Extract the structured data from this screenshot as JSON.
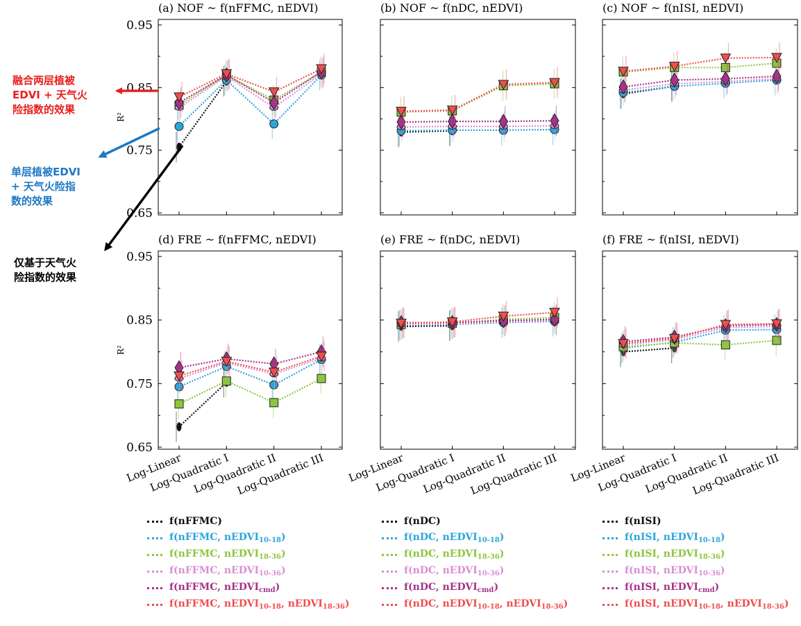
{
  "annotations": {
    "red": "融合两层植被\nEDVI + 天气火\n险指数的效果",
    "blue": "单层植被EDVI\n+ 天气火险指\n数的效果",
    "black": "仅基于天气火\n险指数的效果"
  },
  "colors": {
    "black": "#111111",
    "blue": "#2aa6d9",
    "green": "#8cc63f",
    "pink": "#d98fd6",
    "purple": "#a63289",
    "red": "#f04e4e"
  },
  "chart_data": [
    {
      "type": "line",
      "title": "(a) NOF ~ f(nFFMC, nEDVI)",
      "categories": [
        "Log-Linear",
        "Log-Quadratic I",
        "Log-Quadratic II",
        "Log-Quadratic III"
      ],
      "ylim": [
        0.65,
        0.95
      ],
      "yticks": [
        "0.95",
        "0.85",
        "0.75",
        "0.65"
      ],
      "ylabel": "R²",
      "series": [
        {
          "name": "f(nFFMC)",
          "values": [
            0.755,
            0.86,
            null,
            null
          ]
        },
        {
          "name": "f(nFFMC, nEDVI10-18)",
          "values": [
            0.788,
            0.862,
            0.792,
            0.87
          ]
        },
        {
          "name": "f(nFFMC, nEDVI18-36)",
          "values": [
            0.822,
            0.87,
            0.83,
            0.875
          ]
        },
        {
          "name": "f(nFFMC, nEDVI10-36)",
          "values": [
            0.818,
            0.868,
            0.818,
            0.872
          ]
        },
        {
          "name": "f(nFFMC, nEDVIcmd)",
          "values": [
            0.826,
            0.87,
            0.826,
            0.875
          ]
        },
        {
          "name": "f(nFFMC, nEDVI10-18, nEDVI18-36)",
          "values": [
            0.835,
            0.872,
            0.843,
            0.88
          ]
        }
      ]
    },
    {
      "type": "line",
      "title": "(b) NOF ~ f(nDC, nEDVI)",
      "categories": [
        "Log-Linear",
        "Log-Quadratic I",
        "Log-Quadratic II",
        "Log-Quadratic III"
      ],
      "ylim": [
        0.65,
        0.95
      ],
      "yticks": [],
      "series": [
        {
          "name": "f(nDC)",
          "values": [
            0.779,
            0.781,
            null,
            null
          ]
        },
        {
          "name": "f(nDC, nEDVI10-18)",
          "values": [
            0.781,
            0.782,
            0.782,
            0.783
          ]
        },
        {
          "name": "f(nDC, nEDVI18-36)",
          "values": [
            0.811,
            0.813,
            0.853,
            0.856
          ]
        },
        {
          "name": "f(nDC, nEDVI10-36)",
          "values": [
            0.787,
            0.788,
            0.788,
            0.789
          ]
        },
        {
          "name": "f(nDC, nEDVIcmd)",
          "values": [
            0.795,
            0.796,
            0.796,
            0.797
          ]
        },
        {
          "name": "f(nDC, nEDVI10-18, nEDVI18-36)",
          "values": [
            0.812,
            0.814,
            0.855,
            0.858
          ]
        }
      ]
    },
    {
      "type": "line",
      "title": "(c) NOF ~ f(nISI, nEDVI)",
      "categories": [
        "Log-Linear",
        "Log-Quadratic I",
        "Log-Quadratic II",
        "Log-Quadratic III"
      ],
      "ylim": [
        0.65,
        0.95
      ],
      "yticks": [],
      "series": [
        {
          "name": "f(nISI)",
          "values": [
            0.84,
            0.852,
            null,
            null
          ]
        },
        {
          "name": "f(nISI, nEDVI10-18)",
          "values": [
            0.842,
            0.852,
            0.857,
            0.862
          ]
        },
        {
          "name": "f(nISI, nEDVI18-36)",
          "values": [
            0.875,
            0.882,
            0.882,
            0.889
          ]
        },
        {
          "name": "f(nISI, nEDVI10-36)",
          "values": [
            0.846,
            0.856,
            0.86,
            0.864
          ]
        },
        {
          "name": "f(nISI, nEDVIcmd)",
          "values": [
            0.851,
            0.862,
            0.864,
            0.868
          ]
        },
        {
          "name": "f(nISI, nEDVI10-18, nEDVI18-36)",
          "values": [
            0.876,
            0.884,
            0.897,
            0.898
          ]
        }
      ]
    },
    {
      "type": "line",
      "title": "(d) FRE ~ f(nFFMC, nEDVI)",
      "categories": [
        "Log-Linear",
        "Log-Quadratic I",
        "Log-Quadratic II",
        "Log-Quadratic III"
      ],
      "ylim": [
        0.65,
        0.95
      ],
      "yticks": [
        "0.95",
        "0.85",
        "0.75",
        "0.65"
      ],
      "ylabel": "R²",
      "series": [
        {
          "name": "f(nFFMC)",
          "values": [
            0.682,
            0.752,
            null,
            null
          ]
        },
        {
          "name": "f(nFFMC, nEDVI10-18)",
          "values": [
            0.745,
            0.777,
            0.748,
            0.788
          ]
        },
        {
          "name": "f(nFFMC, nEDVI18-36)",
          "values": [
            0.718,
            0.754,
            0.72,
            0.758
          ]
        },
        {
          "name": "f(nFFMC, nEDVI10-36)",
          "values": [
            0.758,
            0.783,
            0.765,
            0.79
          ]
        },
        {
          "name": "f(nFFMC, nEDVIcmd)",
          "values": [
            0.775,
            0.789,
            0.781,
            0.8
          ]
        },
        {
          "name": "f(nFFMC, nEDVI10-18, nEDVI18-36)",
          "values": [
            0.762,
            0.785,
            0.768,
            0.793
          ]
        }
      ]
    },
    {
      "type": "line",
      "title": "(e) FRE ~ f(nDC, nEDVI)",
      "categories": [
        "Log-Linear",
        "Log-Quadratic I",
        "Log-Quadratic II",
        "Log-Quadratic III"
      ],
      "ylim": [
        0.65,
        0.95
      ],
      "yticks": [],
      "series": [
        {
          "name": "f(nDC)",
          "values": [
            0.84,
            0.841,
            null,
            null
          ]
        },
        {
          "name": "f(nDC, nEDVI10-18)",
          "values": [
            0.842,
            0.843,
            0.846,
            0.848
          ]
        },
        {
          "name": "f(nDC, nEDVI18-36)",
          "values": [
            0.843,
            0.845,
            0.851,
            0.854
          ]
        },
        {
          "name": "f(nDC, nEDVI10-36)",
          "values": [
            0.843,
            0.844,
            0.847,
            0.849
          ]
        },
        {
          "name": "f(nDC, nEDVIcmd)",
          "values": [
            0.846,
            0.846,
            0.849,
            0.851
          ]
        },
        {
          "name": "f(nDC, nEDVI10-18, nEDVI18-36)",
          "values": [
            0.845,
            0.847,
            0.856,
            0.862
          ]
        }
      ]
    },
    {
      "type": "line",
      "title": "(f) FRE ~ f(nISI, nEDVI)",
      "categories": [
        "Log-Linear",
        "Log-Quadratic I",
        "Log-Quadratic II",
        "Log-Quadratic III"
      ],
      "ylim": [
        0.65,
        0.95
      ],
      "yticks": [],
      "series": [
        {
          "name": "f(nISI)",
          "values": [
            0.8,
            0.806,
            null,
            null
          ]
        },
        {
          "name": "f(nISI, nEDVI10-18)",
          "values": [
            0.806,
            0.815,
            0.834,
            0.835
          ]
        },
        {
          "name": "f(nISI, nEDVI18-36)",
          "values": [
            0.808,
            0.814,
            0.811,
            0.818
          ]
        },
        {
          "name": "f(nISI, nEDVI10-36)",
          "values": [
            0.811,
            0.819,
            0.838,
            0.84
          ]
        },
        {
          "name": "f(nISI, nEDVIcmd)",
          "values": [
            0.816,
            0.823,
            0.841,
            0.843
          ]
        },
        {
          "name": "f(nISI, nEDVI10-18, nEDVI18-36)",
          "values": [
            0.813,
            0.821,
            0.843,
            0.844
          ]
        }
      ]
    }
  ],
  "legends": [
    [
      {
        "base": "f(nFFMC",
        "parts": []
      },
      {
        "base": "f(nFFMC",
        "parts": [
          {
            "t": "nEDVI",
            "s": "10-18"
          }
        ]
      },
      {
        "base": "f(nFFMC",
        "parts": [
          {
            "t": "nEDVI",
            "s": "18-36"
          }
        ]
      },
      {
        "base": "f(nFFMC",
        "parts": [
          {
            "t": "nEDVI",
            "s": "10-36"
          }
        ]
      },
      {
        "base": "f(nFFMC",
        "parts": [
          {
            "t": "nEDVI",
            "s": "cmd"
          }
        ]
      },
      {
        "base": "f(nFFMC",
        "parts": [
          {
            "t": "nEDVI",
            "s": "10-18"
          },
          {
            "t": "nEDVI",
            "s": "18-36"
          }
        ]
      }
    ],
    [
      {
        "base": "f(nDC",
        "parts": []
      },
      {
        "base": "f(nDC",
        "parts": [
          {
            "t": "nEDVI",
            "s": "10-18"
          }
        ]
      },
      {
        "base": "f(nDC",
        "parts": [
          {
            "t": "nEDVI",
            "s": "18-36"
          }
        ]
      },
      {
        "base": "f(nDC",
        "parts": [
          {
            "t": "nEDVI",
            "s": "10-36"
          }
        ]
      },
      {
        "base": "f(nDC",
        "parts": [
          {
            "t": "nEDVI",
            "s": "cmd"
          }
        ]
      },
      {
        "base": "f(nDC",
        "parts": [
          {
            "t": "nEDVI",
            "s": "10-18"
          },
          {
            "t": "nEDVI",
            "s": "18-36"
          }
        ]
      }
    ],
    [
      {
        "base": "f(nISI",
        "parts": []
      },
      {
        "base": "f(nISI",
        "parts": [
          {
            "t": "nEDVI",
            "s": "10-18"
          }
        ]
      },
      {
        "base": "f(nISI",
        "parts": [
          {
            "t": "nEDVI",
            "s": "18-36"
          }
        ]
      },
      {
        "base": "f(nISI",
        "parts": [
          {
            "t": "nEDVI",
            "s": "10-36"
          }
        ]
      },
      {
        "base": "f(nISI",
        "parts": [
          {
            "t": "nEDVI",
            "s": "cmd"
          }
        ]
      },
      {
        "base": "f(nISI",
        "parts": [
          {
            "t": "nEDVI",
            "s": "10-18"
          },
          {
            "t": "nEDVI",
            "s": "18-36"
          }
        ]
      }
    ]
  ]
}
